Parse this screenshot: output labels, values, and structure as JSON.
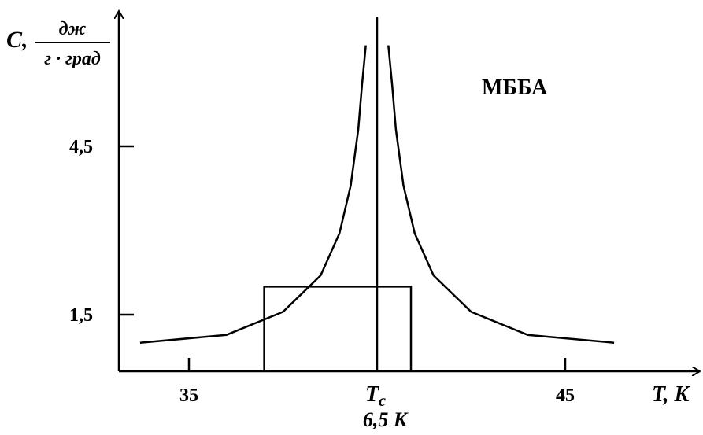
{
  "chart_data": {
    "type": "line",
    "title": "",
    "annotation": "МББА",
    "ylabel": {
      "symbol": "C,",
      "numerator": "дж",
      "denominator": "г · град"
    },
    "xlabel": "T, K",
    "x_ticks": [
      {
        "value": 35,
        "label": "35"
      },
      {
        "value": 45,
        "label": "45"
      }
    ],
    "x_center_label": {
      "value": 40,
      "symbol": "T",
      "subscript": "c",
      "width_label": "6,5 K"
    },
    "y_ticks": [
      {
        "value": 1.5,
        "label": "1,5"
      },
      {
        "value": 4.5,
        "label": "4,5"
      }
    ],
    "tc": 40,
    "half_width_box": {
      "x0": 37.0,
      "x1": 40.9,
      "y": 2.0
    },
    "series": [
      {
        "values": [
          {
            "x": 33.7,
            "y": 1.0
          },
          {
            "x": 36.0,
            "y": 1.14
          },
          {
            "x": 37.5,
            "y": 1.55
          },
          {
            "x": 38.5,
            "y": 2.2
          },
          {
            "x": 39.0,
            "y": 2.95
          },
          {
            "x": 39.3,
            "y": 3.8
          },
          {
            "x": 39.5,
            "y": 4.8
          },
          {
            "x": 39.6,
            "y": 5.6
          },
          {
            "x": 39.7,
            "y": 6.3
          }
        ]
      },
      {
        "values": [
          {
            "x": 40.3,
            "y": 6.3
          },
          {
            "x": 40.4,
            "y": 5.6
          },
          {
            "x": 40.5,
            "y": 4.8
          },
          {
            "x": 40.7,
            "y": 3.8
          },
          {
            "x": 41.0,
            "y": 2.95
          },
          {
            "x": 41.5,
            "y": 2.2
          },
          {
            "x": 42.5,
            "y": 1.55
          },
          {
            "x": 44.0,
            "y": 1.14
          },
          {
            "x": 46.3,
            "y": 1.0
          }
        ]
      }
    ]
  }
}
